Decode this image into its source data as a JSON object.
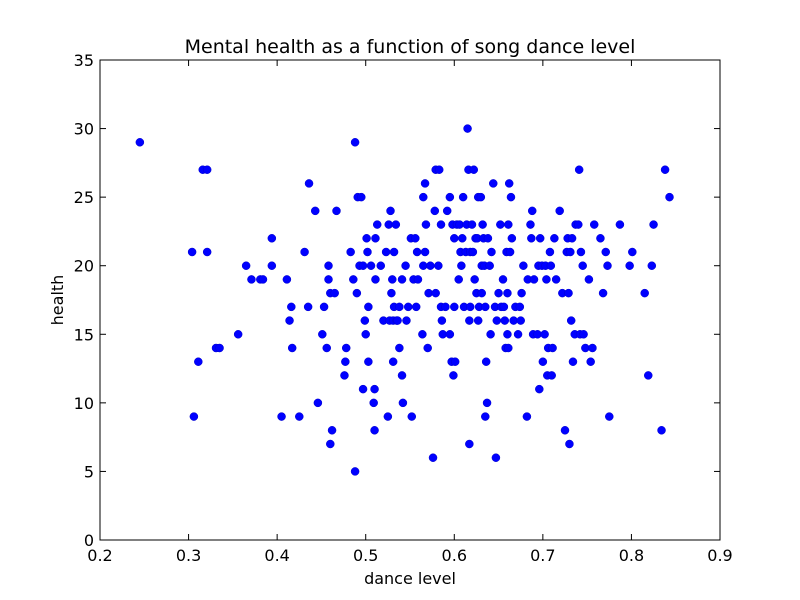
{
  "chart_data": {
    "type": "scatter",
    "title": "Mental health as a function of song dance level",
    "xlabel": "dance level",
    "ylabel": "health",
    "xlim": [
      0.2,
      0.9
    ],
    "ylim": [
      0,
      35
    ],
    "xticks": [
      "0.2",
      "0.3",
      "0.4",
      "0.5",
      "0.6",
      "0.7",
      "0.8",
      "0.9"
    ],
    "yticks": [
      "0",
      "5",
      "10",
      "15",
      "20",
      "25",
      "30",
      "35"
    ],
    "grid": false,
    "point_color": "#0000ff",
    "points": [
      [
        0.245,
        29
      ],
      [
        0.304,
        21
      ],
      [
        0.306,
        9
      ],
      [
        0.311,
        13
      ],
      [
        0.316,
        27
      ],
      [
        0.321,
        27
      ],
      [
        0.321,
        21
      ],
      [
        0.331,
        14
      ],
      [
        0.335,
        14
      ],
      [
        0.356,
        15
      ],
      [
        0.365,
        20
      ],
      [
        0.371,
        19
      ],
      [
        0.381,
        19
      ],
      [
        0.384,
        19
      ],
      [
        0.394,
        20
      ],
      [
        0.394,
        22
      ],
      [
        0.405,
        9
      ],
      [
        0.411,
        19
      ],
      [
        0.414,
        16
      ],
      [
        0.416,
        17
      ],
      [
        0.417,
        14
      ],
      [
        0.425,
        9
      ],
      [
        0.431,
        21
      ],
      [
        0.435,
        17
      ],
      [
        0.436,
        26
      ],
      [
        0.443,
        24
      ],
      [
        0.446,
        10
      ],
      [
        0.451,
        15
      ],
      [
        0.453,
        17
      ],
      [
        0.456,
        14
      ],
      [
        0.458,
        19
      ],
      [
        0.458,
        20
      ],
      [
        0.46,
        18
      ],
      [
        0.46,
        7
      ],
      [
        0.462,
        8
      ],
      [
        0.465,
        18
      ],
      [
        0.467,
        24
      ],
      [
        0.476,
        12
      ],
      [
        0.477,
        13
      ],
      [
        0.478,
        14
      ],
      [
        0.483,
        21
      ],
      [
        0.486,
        19
      ],
      [
        0.488,
        5
      ],
      [
        0.488,
        29
      ],
      [
        0.49,
        18
      ],
      [
        0.491,
        25
      ],
      [
        0.493,
        20
      ],
      [
        0.495,
        25
      ],
      [
        0.497,
        20
      ],
      [
        0.497,
        11
      ],
      [
        0.499,
        16
      ],
      [
        0.5,
        15
      ],
      [
        0.501,
        22
      ],
      [
        0.502,
        21
      ],
      [
        0.503,
        13
      ],
      [
        0.503,
        17
      ],
      [
        0.506,
        20
      ],
      [
        0.509,
        10
      ],
      [
        0.51,
        8
      ],
      [
        0.51,
        11
      ],
      [
        0.511,
        22
      ],
      [
        0.511,
        19
      ],
      [
        0.513,
        23
      ],
      [
        0.517,
        20
      ],
      [
        0.52,
        16
      ],
      [
        0.523,
        21
      ],
      [
        0.525,
        9
      ],
      [
        0.526,
        23
      ],
      [
        0.527,
        16
      ],
      [
        0.528,
        24
      ],
      [
        0.529,
        18
      ],
      [
        0.53,
        19
      ],
      [
        0.531,
        16
      ],
      [
        0.531,
        13
      ],
      [
        0.532,
        21
      ],
      [
        0.532,
        17
      ],
      [
        0.534,
        23
      ],
      [
        0.535,
        16
      ],
      [
        0.536,
        16
      ],
      [
        0.538,
        17
      ],
      [
        0.538,
        14
      ],
      [
        0.541,
        19
      ],
      [
        0.541,
        12
      ],
      [
        0.542,
        10
      ],
      [
        0.545,
        20
      ],
      [
        0.546,
        16
      ],
      [
        0.548,
        17
      ],
      [
        0.551,
        22
      ],
      [
        0.552,
        9
      ],
      [
        0.554,
        19
      ],
      [
        0.556,
        22
      ],
      [
        0.557,
        17
      ],
      [
        0.558,
        21
      ],
      [
        0.559,
        19
      ],
      [
        0.564,
        15
      ],
      [
        0.565,
        20
      ],
      [
        0.565,
        25
      ],
      [
        0.567,
        26
      ],
      [
        0.567,
        21
      ],
      [
        0.568,
        23
      ],
      [
        0.57,
        14
      ],
      [
        0.571,
        18
      ],
      [
        0.573,
        20
      ],
      [
        0.576,
        6
      ],
      [
        0.578,
        24
      ],
      [
        0.579,
        27
      ],
      [
        0.579,
        18
      ],
      [
        0.582,
        20
      ],
      [
        0.583,
        27
      ],
      [
        0.585,
        17
      ],
      [
        0.585,
        23
      ],
      [
        0.586,
        16
      ],
      [
        0.587,
        15
      ],
      [
        0.59,
        17
      ],
      [
        0.592,
        24
      ],
      [
        0.595,
        25
      ],
      [
        0.595,
        15
      ],
      [
        0.597,
        13
      ],
      [
        0.598,
        23
      ],
      [
        0.599,
        12
      ],
      [
        0.6,
        17
      ],
      [
        0.6,
        22
      ],
      [
        0.601,
        13
      ],
      [
        0.603,
        23
      ],
      [
        0.605,
        19
      ],
      [
        0.606,
        23
      ],
      [
        0.607,
        21
      ],
      [
        0.608,
        20
      ],
      [
        0.609,
        22
      ],
      [
        0.61,
        25
      ],
      [
        0.611,
        17
      ],
      [
        0.613,
        21
      ],
      [
        0.614,
        23
      ],
      [
        0.615,
        30
      ],
      [
        0.616,
        27
      ],
      [
        0.617,
        16
      ],
      [
        0.617,
        7
      ],
      [
        0.618,
        17
      ],
      [
        0.618,
        21
      ],
      [
        0.62,
        23
      ],
      [
        0.621,
        21
      ],
      [
        0.622,
        27
      ],
      [
        0.623,
        19
      ],
      [
        0.624,
        22
      ],
      [
        0.625,
        18
      ],
      [
        0.626,
        22
      ],
      [
        0.627,
        16
      ],
      [
        0.627,
        25
      ],
      [
        0.628,
        17
      ],
      [
        0.63,
        25
      ],
      [
        0.631,
        20
      ],
      [
        0.631,
        18
      ],
      [
        0.632,
        23
      ],
      [
        0.633,
        22
      ],
      [
        0.634,
        20
      ],
      [
        0.635,
        17
      ],
      [
        0.635,
        9
      ],
      [
        0.636,
        13
      ],
      [
        0.637,
        10
      ],
      [
        0.638,
        22
      ],
      [
        0.64,
        20
      ],
      [
        0.641,
        15
      ],
      [
        0.642,
        21
      ],
      [
        0.644,
        26
      ],
      [
        0.646,
        17
      ],
      [
        0.647,
        6
      ],
      [
        0.648,
        16
      ],
      [
        0.65,
        18
      ],
      [
        0.652,
        23
      ],
      [
        0.653,
        17
      ],
      [
        0.655,
        19
      ],
      [
        0.656,
        17
      ],
      [
        0.657,
        16
      ],
      [
        0.658,
        14
      ],
      [
        0.659,
        21
      ],
      [
        0.66,
        15
      ],
      [
        0.66,
        18
      ],
      [
        0.661,
        23
      ],
      [
        0.661,
        14
      ],
      [
        0.662,
        26
      ],
      [
        0.663,
        21
      ],
      [
        0.664,
        25
      ],
      [
        0.665,
        22
      ],
      [
        0.667,
        16
      ],
      [
        0.669,
        17
      ],
      [
        0.672,
        15
      ],
      [
        0.674,
        17
      ],
      [
        0.675,
        16
      ],
      [
        0.676,
        18
      ],
      [
        0.678,
        20
      ],
      [
        0.682,
        9
      ],
      [
        0.683,
        19
      ],
      [
        0.686,
        23
      ],
      [
        0.687,
        22
      ],
      [
        0.688,
        24
      ],
      [
        0.689,
        15
      ],
      [
        0.69,
        19
      ],
      [
        0.694,
        15
      ],
      [
        0.695,
        20
      ],
      [
        0.696,
        11
      ],
      [
        0.697,
        22
      ],
      [
        0.699,
        20
      ],
      [
        0.7,
        13
      ],
      [
        0.702,
        15
      ],
      [
        0.703,
        20
      ],
      [
        0.704,
        19
      ],
      [
        0.705,
        12
      ],
      [
        0.706,
        14
      ],
      [
        0.708,
        21
      ],
      [
        0.709,
        20
      ],
      [
        0.71,
        12
      ],
      [
        0.711,
        14
      ],
      [
        0.713,
        22
      ],
      [
        0.715,
        19
      ],
      [
        0.719,
        24
      ],
      [
        0.722,
        18
      ],
      [
        0.725,
        8
      ],
      [
        0.727,
        21
      ],
      [
        0.728,
        22
      ],
      [
        0.729,
        18
      ],
      [
        0.73,
        7
      ],
      [
        0.731,
        21
      ],
      [
        0.732,
        16
      ],
      [
        0.733,
        22
      ],
      [
        0.734,
        13
      ],
      [
        0.736,
        15
      ],
      [
        0.737,
        23
      ],
      [
        0.74,
        23
      ],
      [
        0.741,
        27
      ],
      [
        0.742,
        15
      ],
      [
        0.743,
        21
      ],
      [
        0.745,
        20
      ],
      [
        0.746,
        15
      ],
      [
        0.748,
        14
      ],
      [
        0.752,
        19
      ],
      [
        0.754,
        13
      ],
      [
        0.756,
        14
      ],
      [
        0.758,
        23
      ],
      [
        0.765,
        22
      ],
      [
        0.768,
        18
      ],
      [
        0.771,
        21
      ],
      [
        0.773,
        20
      ],
      [
        0.775,
        9
      ],
      [
        0.787,
        23
      ],
      [
        0.798,
        20
      ],
      [
        0.801,
        21
      ],
      [
        0.815,
        18
      ],
      [
        0.819,
        12
      ],
      [
        0.823,
        20
      ],
      [
        0.825,
        23
      ],
      [
        0.834,
        8
      ],
      [
        0.838,
        27
      ],
      [
        0.843,
        25
      ]
    ]
  }
}
